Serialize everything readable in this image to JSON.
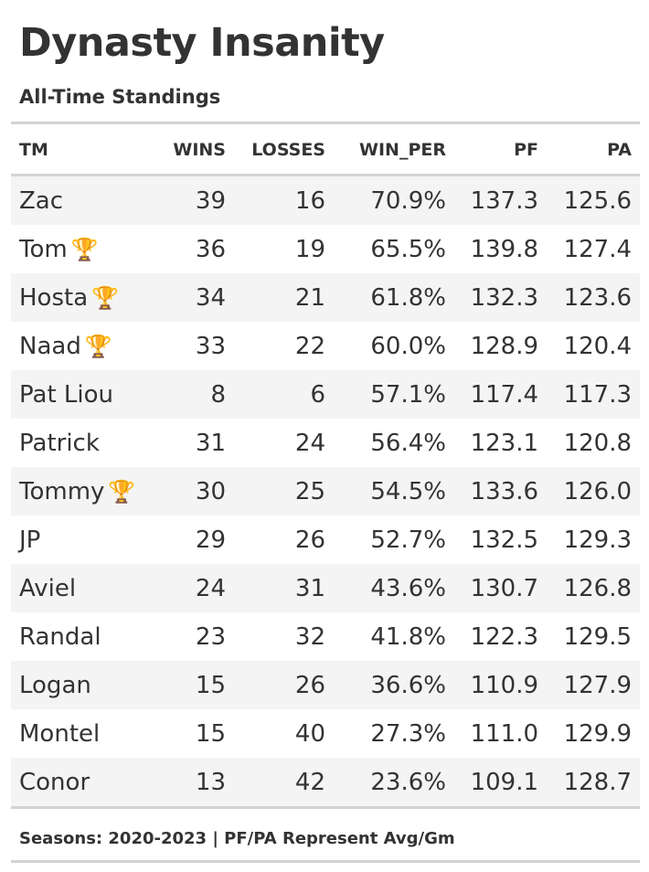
{
  "title": "Dynasty Insanity",
  "subtitle": "All-Time Standings",
  "columns": [
    "TM",
    "WINS",
    "LOSSES",
    "WIN_PER",
    "PF",
    "PA"
  ],
  "trophy_icon": "🏆",
  "rows": [
    {
      "tm": "Zac",
      "trophy": false,
      "wins": "39",
      "losses": "16",
      "win_per": "70.9%",
      "pf": "137.3",
      "pa": "125.6"
    },
    {
      "tm": "Tom",
      "trophy": true,
      "wins": "36",
      "losses": "19",
      "win_per": "65.5%",
      "pf": "139.8",
      "pa": "127.4"
    },
    {
      "tm": "Hosta",
      "trophy": true,
      "wins": "34",
      "losses": "21",
      "win_per": "61.8%",
      "pf": "132.3",
      "pa": "123.6"
    },
    {
      "tm": "Naad",
      "trophy": true,
      "wins": "33",
      "losses": "22",
      "win_per": "60.0%",
      "pf": "128.9",
      "pa": "120.4"
    },
    {
      "tm": "Pat Liou",
      "trophy": false,
      "wins": "8",
      "losses": "6",
      "win_per": "57.1%",
      "pf": "117.4",
      "pa": "117.3"
    },
    {
      "tm": "Patrick",
      "trophy": false,
      "wins": "31",
      "losses": "24",
      "win_per": "56.4%",
      "pf": "123.1",
      "pa": "120.8"
    },
    {
      "tm": "Tommy",
      "trophy": true,
      "wins": "30",
      "losses": "25",
      "win_per": "54.5%",
      "pf": "133.6",
      "pa": "126.0"
    },
    {
      "tm": "JP",
      "trophy": false,
      "wins": "29",
      "losses": "26",
      "win_per": "52.7%",
      "pf": "132.5",
      "pa": "129.3"
    },
    {
      "tm": "Aviel",
      "trophy": false,
      "wins": "24",
      "losses": "31",
      "win_per": "43.6%",
      "pf": "130.7",
      "pa": "126.8"
    },
    {
      "tm": "Randal",
      "trophy": false,
      "wins": "23",
      "losses": "32",
      "win_per": "41.8%",
      "pf": "122.3",
      "pa": "129.5"
    },
    {
      "tm": "Logan",
      "trophy": false,
      "wins": "15",
      "losses": "26",
      "win_per": "36.6%",
      "pf": "110.9",
      "pa": "127.9"
    },
    {
      "tm": "Montel",
      "trophy": false,
      "wins": "15",
      "losses": "40",
      "win_per": "27.3%",
      "pf": "111.0",
      "pa": "129.9"
    },
    {
      "tm": "Conor",
      "trophy": false,
      "wins": "13",
      "losses": "42",
      "win_per": "23.6%",
      "pf": "109.1",
      "pa": "128.7"
    }
  ],
  "footnote": "Seasons: 2020-2023 | PF/PA Represent Avg/Gm"
}
